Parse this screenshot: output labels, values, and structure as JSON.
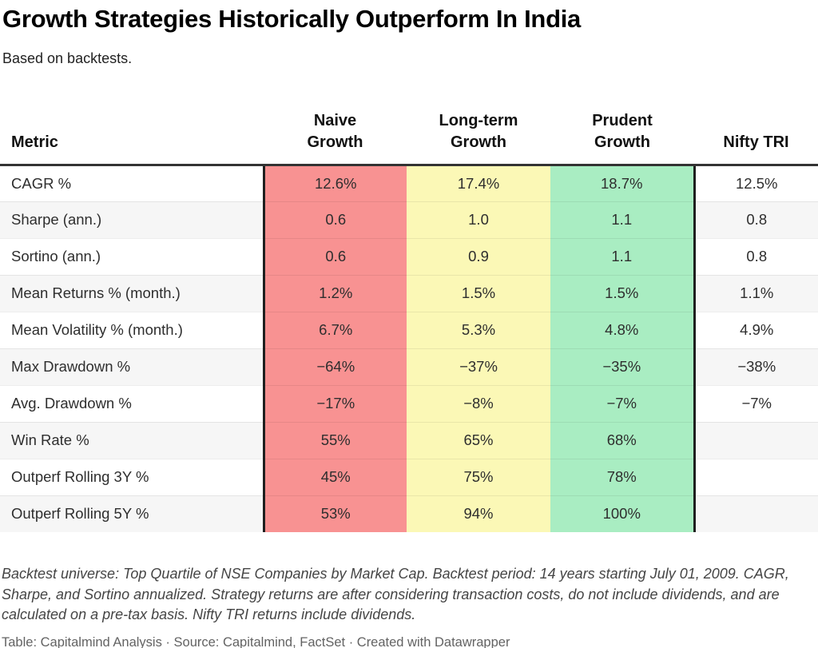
{
  "header": {
    "title": "Growth Strategies Historically Outperform In India",
    "subtitle": "Based on backtests."
  },
  "table": {
    "columns": [
      {
        "label": "Metric"
      },
      {
        "label": "Naive Growth",
        "line1": "Naive",
        "line2": "Growth",
        "color": "#f89292"
      },
      {
        "label": "Long-term Growth",
        "line1": "Long-term",
        "line2": "Growth",
        "color": "#fbf8b6"
      },
      {
        "label": "Prudent Growth",
        "line1": "Prudent",
        "line2": "Growth",
        "color": "#a9edc2"
      },
      {
        "label": "Nifty TRI"
      }
    ],
    "rows": [
      {
        "metric": "CAGR %",
        "values": [
          "12.6%",
          "17.4%",
          "18.7%",
          "12.5%"
        ]
      },
      {
        "metric": "Sharpe (ann.)",
        "values": [
          "0.6",
          "1.0",
          "1.1",
          "0.8"
        ]
      },
      {
        "metric": "Sortino (ann.)",
        "values": [
          "0.6",
          "0.9",
          "1.1",
          "0.8"
        ]
      },
      {
        "metric": "Mean Returns % (month.)",
        "values": [
          "1.2%",
          "1.5%",
          "1.5%",
          "1.1%"
        ]
      },
      {
        "metric": "Mean Volatility % (month.)",
        "values": [
          "6.7%",
          "5.3%",
          "4.8%",
          "4.9%"
        ]
      },
      {
        "metric": "Max Drawdown %",
        "values": [
          "−64%",
          "−37%",
          "−35%",
          "−38%"
        ]
      },
      {
        "metric": "Avg. Drawdown %",
        "values": [
          "−17%",
          "−8%",
          "−7%",
          "−7%"
        ]
      },
      {
        "metric": "Win Rate %",
        "values": [
          "55%",
          "65%",
          "68%",
          ""
        ]
      },
      {
        "metric": "Outperf Rolling 3Y %",
        "values": [
          "45%",
          "75%",
          "78%",
          ""
        ]
      },
      {
        "metric": "Outperf Rolling 5Y %",
        "values": [
          "53%",
          "94%",
          "100%",
          ""
        ]
      }
    ]
  },
  "footer": {
    "note": "Backtest universe: Top Quartile of NSE Companies by Market Cap. Backtest period: 14 years starting July 01, 2009. CAGR, Sharpe, and Sortino annualized. Strategy returns are after considering transaction costs, do not include dividends, and are calculated on a pre-tax basis. Nifty TRI returns include dividends.",
    "credit": "Table: Capitalmind Analysis · Source: Capitalmind, FactSet · Created with Datawrapper"
  },
  "colors": {
    "naive_column": "#f89292",
    "longterm_column": "#fbf8b6",
    "prudent_column": "#a9edc2",
    "alt_row": "#f6f6f6",
    "header_border": "#333333",
    "column_divider": "#1f1f1f"
  },
  "chart_data": {
    "type": "table",
    "title": "Growth Strategies Historically Outperform In India",
    "subtitle": "Based on backtests.",
    "row_labels": [
      "CAGR %",
      "Sharpe (ann.)",
      "Sortino (ann.)",
      "Mean Returns % (month.)",
      "Mean Volatility % (month.)",
      "Max Drawdown %",
      "Avg. Drawdown %",
      "Win Rate %",
      "Outperf Rolling 3Y %",
      "Outperf Rolling 5Y %"
    ],
    "series": [
      {
        "name": "Naive Growth",
        "values": [
          12.6,
          0.6,
          0.6,
          1.2,
          6.7,
          -64,
          -17,
          55,
          45,
          53
        ]
      },
      {
        "name": "Long-term Growth",
        "values": [
          17.4,
          1.0,
          0.9,
          1.5,
          5.3,
          -37,
          -8,
          65,
          75,
          94
        ]
      },
      {
        "name": "Prudent Growth",
        "values": [
          18.7,
          1.1,
          1.1,
          1.5,
          4.8,
          -35,
          -7,
          68,
          78,
          100
        ]
      },
      {
        "name": "Nifty TRI",
        "values": [
          12.5,
          0.8,
          0.8,
          1.1,
          4.9,
          -38,
          -7,
          null,
          null,
          null
        ]
      }
    ]
  }
}
